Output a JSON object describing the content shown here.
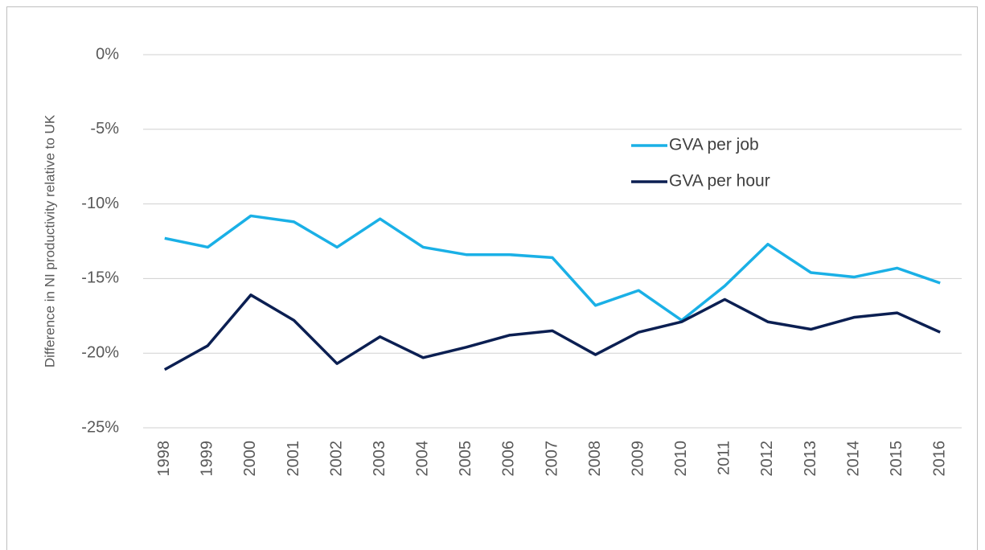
{
  "chart_data": {
    "type": "line",
    "y_label": "Difference in NI productivity  relative to UK",
    "categories": [
      "1998",
      "1999",
      "2000",
      "2001",
      "2002",
      "2003",
      "2004",
      "2005",
      "2006",
      "2007",
      "2008",
      "2009",
      "2010",
      "2011",
      "2012",
      "2013",
      "2014",
      "2015",
      "2016"
    ],
    "series": [
      {
        "name": "GVA per job",
        "color": "#1ab0e6",
        "values": [
          -12.3,
          -12.9,
          -10.8,
          -11.2,
          -12.9,
          -11.0,
          -12.9,
          -13.4,
          -13.4,
          -13.6,
          -16.8,
          -15.8,
          -17.8,
          -15.5,
          -12.7,
          -14.6,
          -14.9,
          -14.3,
          -15.3
        ]
      },
      {
        "name": "GVA per hour",
        "color": "#0b1f52",
        "values": [
          -21.1,
          -19.5,
          -16.1,
          -17.8,
          -20.7,
          -18.9,
          -20.3,
          -19.6,
          -18.8,
          -18.5,
          -20.1,
          -18.6,
          -17.9,
          -16.4,
          -17.9,
          -18.4,
          -17.6,
          -17.3,
          -18.6
        ]
      }
    ],
    "ylim": [
      -25,
      0
    ],
    "yticks": [
      {
        "value": 0,
        "label": "0%"
      },
      {
        "value": -5,
        "label": "-5%"
      },
      {
        "value": -10,
        "label": "-10%"
      },
      {
        "value": -15,
        "label": "-15%"
      },
      {
        "value": -20,
        "label": "-20%"
      },
      {
        "value": -25,
        "label": "-25%"
      }
    ],
    "grid": true,
    "legend": "right"
  }
}
